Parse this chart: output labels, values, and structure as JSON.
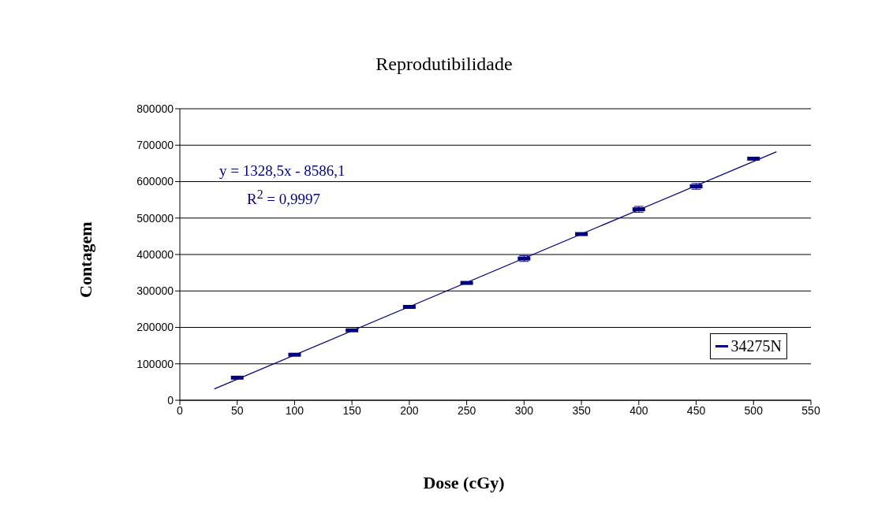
{
  "chart_data": {
    "type": "scatter",
    "title": "Reprodutibilidade",
    "xlabel": "Dose (cGy)",
    "ylabel": "Contagem",
    "x": [
      50,
      100,
      150,
      200,
      250,
      300,
      350,
      400,
      450,
      500
    ],
    "series": [
      {
        "name": "34275N",
        "color": "#000080",
        "values": [
          62000,
          125000,
          192000,
          256000,
          322000,
          389000,
          456000,
          524000,
          587000,
          663000
        ],
        "errors": [
          null,
          null,
          null,
          null,
          null,
          8000,
          null,
          8000,
          8000,
          null
        ]
      },
      {
        "type": "line",
        "color": "#000080",
        "x": [
          30,
          520
        ],
        "values": [
          31000,
          682000
        ]
      }
    ],
    "annotations": [
      "y = 1328,5x - 8586,1",
      "R$^{2}$ = 0,9997"
    ],
    "xlim": [
      0,
      550
    ],
    "xticks": [
      0,
      50,
      100,
      150,
      200,
      250,
      300,
      350,
      400,
      450,
      500,
      550
    ],
    "ylim": [
      0,
      800000
    ],
    "yticks": [
      0,
      100000,
      200000,
      300000,
      400000,
      500000,
      600000,
      700000,
      800000
    ],
    "grid": "y",
    "legend": "right"
  }
}
